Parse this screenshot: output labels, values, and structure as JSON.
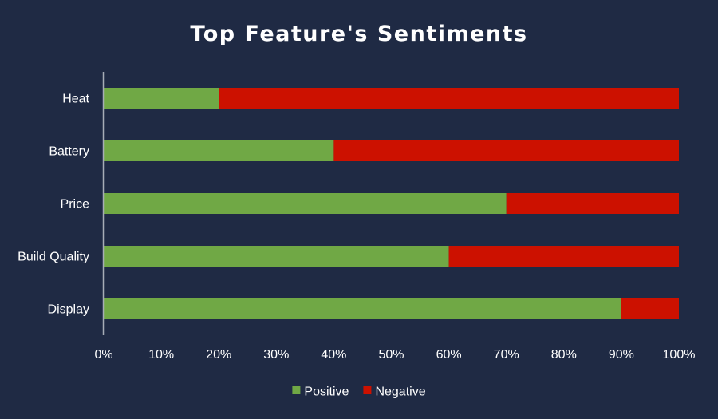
{
  "chart_data": {
    "type": "bar",
    "orientation": "horizontal",
    "stacking": "percent",
    "title": "Top Feature's Sentiments",
    "categories": [
      "Heat",
      "Battery",
      "Price",
      "Build Quality",
      "Display"
    ],
    "series": [
      {
        "name": "Positive",
        "values": [
          20,
          40,
          70,
          60,
          90
        ],
        "color": "#70a845"
      },
      {
        "name": "Negative",
        "values": [
          80,
          60,
          30,
          40,
          10
        ],
        "color": "#cc1100"
      }
    ],
    "xlim": [
      0,
      100
    ],
    "x_ticks": [
      "0%",
      "10%",
      "20%",
      "30%",
      "40%",
      "50%",
      "60%",
      "70%",
      "80%",
      "90%",
      "100%"
    ],
    "grid": false,
    "legend_position": "bottom",
    "background_color": "#1f2a44",
    "axis_color": "#a6acb6",
    "text_color": "#ffffff"
  }
}
